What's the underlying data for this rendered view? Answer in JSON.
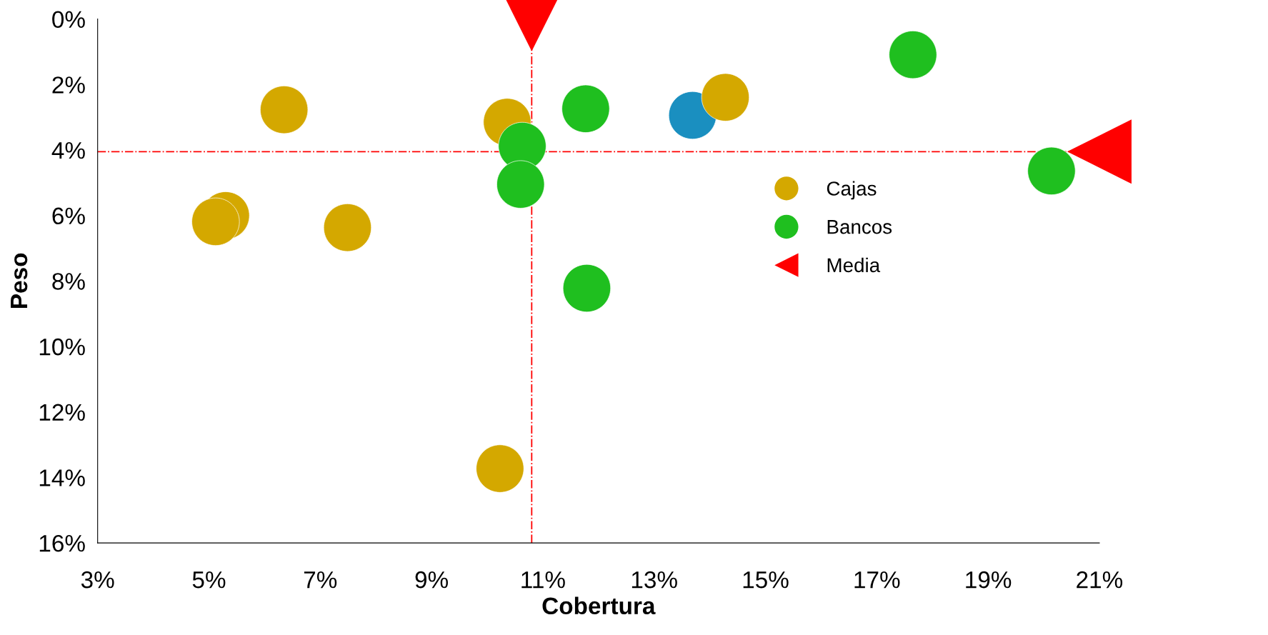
{
  "chart_data": {
    "type": "scatter",
    "xlabel": "Cobertura",
    "ylabel": "Peso",
    "marker": "circle",
    "grid": false,
    "legend": "right",
    "xlim": [
      3,
      21
    ],
    "xticks": [
      {
        "value": 3,
        "label": "3%"
      },
      {
        "value": 5,
        "label": "5%"
      },
      {
        "value": 7,
        "label": "7%"
      },
      {
        "value": 9,
        "label": "9%"
      },
      {
        "value": 11,
        "label": "11%"
      },
      {
        "value": 13,
        "label": "13%"
      },
      {
        "value": 15,
        "label": "15%"
      },
      {
        "value": 17,
        "label": "17%"
      },
      {
        "value": 19,
        "label": "19%"
      },
      {
        "value": 21,
        "label": "21%"
      }
    ],
    "ylim": [
      16,
      0
    ],
    "yticks": [
      {
        "value": 0,
        "label": "0%"
      },
      {
        "value": 2,
        "label": "2%"
      },
      {
        "value": 4,
        "label": "4%"
      },
      {
        "value": 6,
        "label": "6%"
      },
      {
        "value": 8,
        "label": "8%"
      },
      {
        "value": 10,
        "label": "10%"
      },
      {
        "value": 12,
        "label": "12%"
      },
      {
        "value": 14,
        "label": "14%"
      },
      {
        "value": 16,
        "label": "16%"
      }
    ],
    "series": [
      {
        "color": "#1a8fc0",
        "x": [
          13.69
        ],
        "values": [
          2.94
        ]
      },
      {
        "name": "Cajas",
        "color": "#d4a800",
        "x": [
          6.35,
          5.3,
          5.12,
          7.49,
          10.36,
          14.28,
          10.23
        ],
        "values": [
          2.77,
          6.0,
          6.19,
          6.37,
          3.15,
          2.39,
          13.73
        ]
      },
      {
        "name": "Bancos",
        "color": "#1fbf1f",
        "x": [
          10.63,
          11.77,
          17.65,
          20.14,
          10.6,
          11.79
        ],
        "values": [
          3.88,
          2.74,
          1.09,
          4.64,
          5.05,
          8.22
        ]
      },
      {
        "name": "Media",
        "color": "#ff0000",
        "marker": "triangle",
        "x": [
          10.8,
          21
        ],
        "values": [
          0,
          4.05
        ]
      }
    ],
    "ref_lines": [
      {
        "axis": "x",
        "value": 10.8,
        "color": "#ff0000",
        "line_style": "dashdot"
      },
      {
        "axis": "y",
        "value": 4.05,
        "color": "#ff0000",
        "line_style": "dashdot"
      }
    ]
  }
}
